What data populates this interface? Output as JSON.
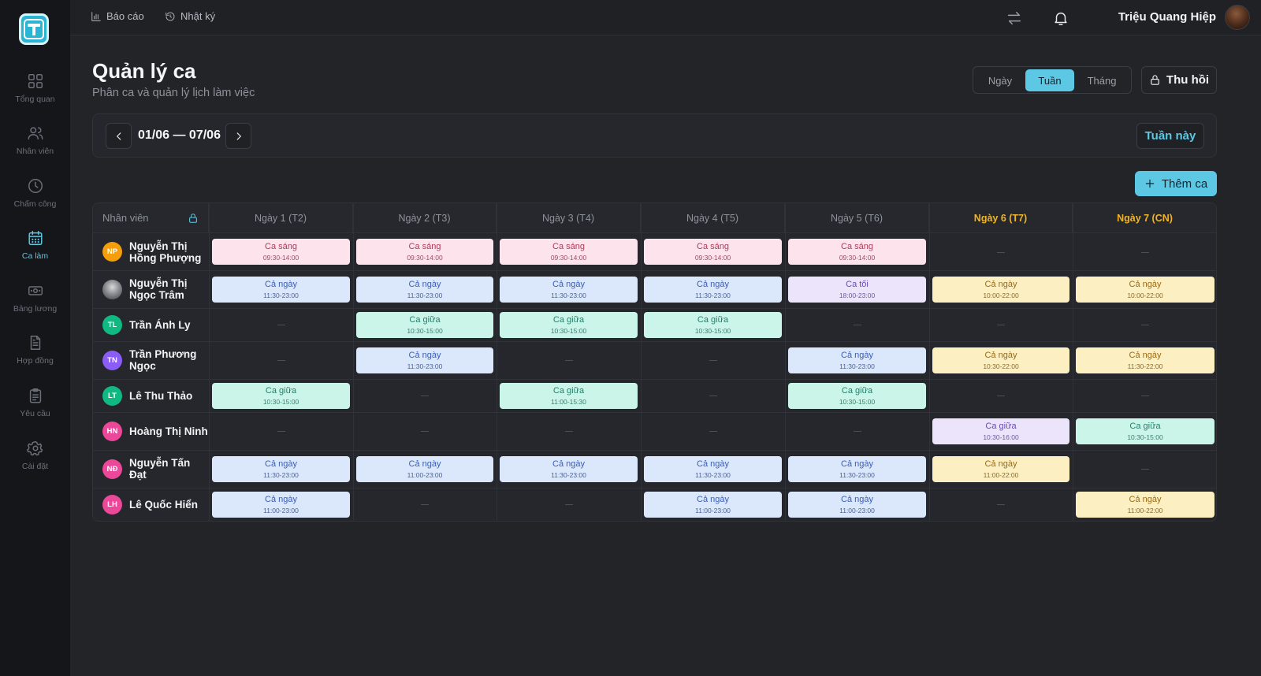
{
  "sidebar": {
    "items": [
      {
        "label": "Tổng quan",
        "icon": "grid-icon"
      },
      {
        "label": "Nhân viên",
        "icon": "users-icon"
      },
      {
        "label": "Chấm công",
        "icon": "clock-icon"
      },
      {
        "label": "Ca làm",
        "icon": "calendar-icon",
        "active": true
      },
      {
        "label": "Bảng lương",
        "icon": "money-icon"
      },
      {
        "label": "Hợp đồng",
        "icon": "document-icon"
      },
      {
        "label": "Yêu cầu",
        "icon": "clipboard-icon"
      },
      {
        "label": "Cài đặt",
        "icon": "gear-icon"
      }
    ]
  },
  "topbar": {
    "report_label": "Báo cáo",
    "log_label": "Nhật ký",
    "user_name": "Triệu Quang Hiệp"
  },
  "header": {
    "title": "Quản lý ca",
    "subtitle": "Phân ca và quản lý lịch làm việc",
    "view_options": [
      "Ngày",
      "Tuần",
      "Tháng"
    ],
    "active_view": "Tuần",
    "revoke_label": "Thu hồi"
  },
  "week": {
    "range": "01/06 — 07/06",
    "this_week_label": "Tuần này"
  },
  "add_shift_label": "Thêm ca",
  "table": {
    "employee_header": "Nhân viên",
    "days": [
      "Ngày 1 (T2)",
      "Ngày 2 (T3)",
      "Ngày 3 (T4)",
      "Ngày 4 (T5)",
      "Ngày 5 (T6)",
      "Ngày 6 (T7)",
      "Ngày 7 (CN)"
    ],
    "empty_marker": "—",
    "employees": [
      {
        "name": "Nguyễn Thị Hồng Phượng",
        "initials": "NP",
        "color": "#f59e0b",
        "shifts": [
          [
            "Ca sáng",
            "09:30-14:00",
            "pink"
          ],
          [
            "Ca sáng",
            "09:30-14:00",
            "pink"
          ],
          [
            "Ca sáng",
            "09:30-14:00",
            "pink"
          ],
          [
            "Ca sáng",
            "09:30-14:00",
            "pink"
          ],
          [
            "Ca sáng",
            "09:30-14:00",
            "pink"
          ],
          null,
          null
        ]
      },
      {
        "name": "Nguyễn Thị Ngọc Trâm",
        "initials": "",
        "color": "#6b7079",
        "shifts": [
          [
            "Cả ngày",
            "11:30-23:00",
            "blue"
          ],
          [
            "Cả ngày",
            "11:30-23:00",
            "blue"
          ],
          [
            "Cả ngày",
            "11:30-23:00",
            "blue"
          ],
          [
            "Cả ngày",
            "11:30-23:00",
            "blue"
          ],
          [
            "Ca tối",
            "18:00-23:00",
            "purple"
          ],
          [
            "Cả ngày",
            "10:00-22:00",
            "yellow"
          ],
          [
            "Cả ngày",
            "10:00-22:00",
            "yellow"
          ]
        ]
      },
      {
        "name": "Trần Ánh Ly",
        "initials": "TL",
        "color": "#10b981",
        "shifts": [
          null,
          [
            "Ca giữa",
            "10:30-15:00",
            "teal"
          ],
          [
            "Ca giữa",
            "10:30-15:00",
            "teal"
          ],
          [
            "Ca giữa",
            "10:30-15:00",
            "teal"
          ],
          null,
          null,
          null
        ]
      },
      {
        "name": "Trần Phương Ngọc",
        "initials": "TN",
        "color": "#8b5cf6",
        "shifts": [
          null,
          [
            "Cả ngày",
            "11:30-23:00",
            "blue"
          ],
          null,
          null,
          [
            "Cả ngày",
            "11:30-23:00",
            "blue"
          ],
          [
            "Cả ngày",
            "10:30-22:00",
            "yellow"
          ],
          [
            "Cả ngày",
            "11:30-22:00",
            "yellow"
          ]
        ]
      },
      {
        "name": "Lê Thu Thảo",
        "initials": "LT",
        "color": "#10b981",
        "shifts": [
          [
            "Ca giữa",
            "10:30-15:00",
            "teal"
          ],
          null,
          [
            "Ca giữa",
            "11:00-15:30",
            "teal"
          ],
          null,
          [
            "Ca giữa",
            "10:30-15:00",
            "teal"
          ],
          null,
          null
        ]
      },
      {
        "name": "Hoàng Thị Ninh",
        "initials": "HN",
        "color": "#ec4899",
        "shifts": [
          null,
          null,
          null,
          null,
          null,
          [
            "Ca giữa",
            "10:30-16:00",
            "purple"
          ],
          [
            "Ca giữa",
            "10:30-15:00",
            "teal"
          ]
        ]
      },
      {
        "name": "Nguyễn Tấn Đạt",
        "initials": "NĐ",
        "color": "#ec4899",
        "shifts": [
          [
            "Cả ngày",
            "11:30-23:00",
            "blue"
          ],
          [
            "Cả ngày",
            "11:00-23:00",
            "blue"
          ],
          [
            "Cả ngày",
            "11:30-23:00",
            "blue"
          ],
          [
            "Cả ngày",
            "11:30-23:00",
            "blue"
          ],
          [
            "Cả ngày",
            "11:30-23:00",
            "blue"
          ],
          [
            "Cả ngày",
            "11:00-22:00",
            "yellow"
          ],
          null
        ]
      },
      {
        "name": "Lê Quốc Hiển",
        "initials": "LH",
        "color": "#ec4899",
        "shifts": [
          [
            "Cả ngày",
            "11:00-23:00",
            "blue"
          ],
          null,
          null,
          [
            "Cả ngày",
            "11:00-23:00",
            "blue"
          ],
          [
            "Cả ngày",
            "11:00-23:00",
            "blue"
          ],
          null,
          [
            "Cả ngày",
            "11:00-22:00",
            "yellow"
          ]
        ]
      }
    ]
  },
  "colors": {
    "accent": "#5cc8e4",
    "weekend": "#f0b429",
    "background": "#222428",
    "sidebar": "#15161a"
  }
}
